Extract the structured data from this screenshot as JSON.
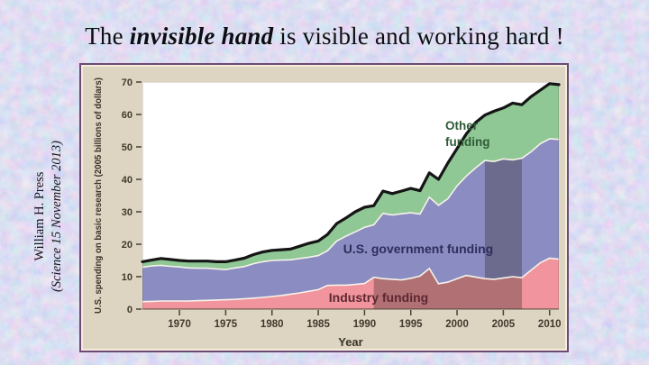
{
  "slide": {
    "background_base_color": "#b5c3e4",
    "title": {
      "prefix": "The ",
      "emphasis": "invisible hand",
      "suffix": " is visible and working hard !"
    },
    "credit": {
      "line1": "William H. Press",
      "line2": "(Science 15 November 2013)"
    }
  },
  "chart_data": {
    "type": "area",
    "stacked": true,
    "title": "",
    "xlabel": "Year",
    "ylabel": "U.S. spending on basic research (2005 billions of dollars)",
    "xlim": [
      1966,
      2011
    ],
    "ylim": [
      0,
      70
    ],
    "xticks": [
      1970,
      1975,
      1980,
      1985,
      1990,
      1995,
      2000,
      2005,
      2010
    ],
    "yticks": [
      0,
      10,
      20,
      30,
      40,
      50,
      60,
      70
    ],
    "grid": false,
    "legend": "inline-labels",
    "x": [
      1966,
      1967,
      1968,
      1969,
      1970,
      1971,
      1972,
      1973,
      1974,
      1975,
      1976,
      1977,
      1978,
      1979,
      1980,
      1981,
      1982,
      1983,
      1984,
      1985,
      1986,
      1987,
      1988,
      1989,
      1990,
      1991,
      1992,
      1993,
      1994,
      1995,
      1996,
      1997,
      1998,
      1999,
      2000,
      2001,
      2002,
      2003,
      2004,
      2005,
      2006,
      2007,
      2008,
      2009,
      2010,
      2011
    ],
    "series": [
      {
        "name": "Industry funding",
        "color": "#f2949d",
        "label_color": "#5c2831",
        "values": [
          2.3,
          2.4,
          2.5,
          2.5,
          2.5,
          2.5,
          2.6,
          2.7,
          2.8,
          2.9,
          3.0,
          3.2,
          3.4,
          3.6,
          3.9,
          4.2,
          4.6,
          5.0,
          5.5,
          6.0,
          7.3,
          7.4,
          7.4,
          7.6,
          7.9,
          9.8,
          9.4,
          9.2,
          9.0,
          9.5,
          10.2,
          12.5,
          7.8,
          8.3,
          9.4,
          10.4,
          9.9,
          9.4,
          9.2,
          9.6,
          10.0,
          9.7,
          12.0,
          14.3,
          15.7,
          15.4
        ]
      },
      {
        "name": "U.S. government funding",
        "color": "#8b8cc2",
        "label_color": "#2e2d5c",
        "values": [
          10.6,
          10.9,
          11.0,
          10.7,
          10.5,
          10.2,
          10.0,
          9.9,
          9.6,
          9.3,
          9.7,
          9.9,
          10.6,
          11.0,
          11.1,
          10.9,
          10.6,
          10.6,
          10.5,
          10.5,
          10.7,
          13.6,
          15.1,
          16.2,
          17.3,
          16.2,
          20.1,
          19.8,
          20.4,
          20.2,
          19.1,
          22.0,
          24.2,
          25.7,
          28.6,
          30.6,
          33.6,
          36.4,
          36.3,
          36.7,
          36.0,
          36.8,
          36.5,
          36.7,
          36.8,
          36.9
        ]
      },
      {
        "name": "Other funding",
        "color": "#8fc795",
        "label_color": "#2f5b38",
        "values": [
          1.7,
          1.8,
          2.1,
          2.1,
          2.0,
          2.1,
          2.2,
          2.2,
          2.2,
          2.4,
          2.4,
          2.6,
          2.8,
          3.0,
          3.1,
          3.2,
          3.3,
          3.8,
          4.3,
          4.5,
          5.0,
          5.4,
          5.6,
          6.2,
          6.2,
          5.9,
          6.9,
          6.6,
          7.0,
          7.5,
          7.2,
          7.5,
          8.0,
          11.0,
          11.5,
          13.0,
          14.0,
          14.0,
          15.5,
          15.7,
          17.5,
          16.5,
          17.0,
          16.5,
          17.0,
          16.9
        ]
      }
    ],
    "total_line": {
      "color": "#151515",
      "width": 3.2
    },
    "shaded_bands": [
      {
        "series": "Industry funding",
        "from": 1991,
        "to": 2007
      },
      {
        "series": "U.S. government funding",
        "from": 2003,
        "to": 2007
      }
    ],
    "shade_color": "rgba(45,38,34,0.33)",
    "frame": {
      "background": "#ddd5c1",
      "border_color": "#6d4a75",
      "plot_background": "#ffffff",
      "tick_color": "#42392e",
      "axis_label_color": "#3b342a"
    }
  }
}
